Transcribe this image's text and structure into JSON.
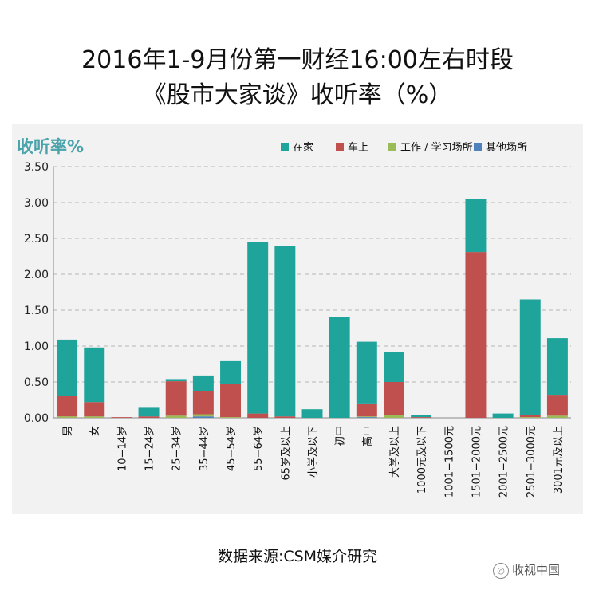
{
  "chart_data": {
    "type": "bar",
    "stacked": true,
    "title_line1": "2016年1-9月份第一财经16:00左右时段",
    "title_line2": "《股市大家谈》收听率（%）",
    "ylabel": "收听率%",
    "ylim": [
      0,
      3.5
    ],
    "yticks": [
      "0.00",
      "0.50",
      "1.00",
      "1.50",
      "2.00",
      "2.50",
      "3.00",
      "3.50"
    ],
    "grid": true,
    "legend_position": "top-right",
    "categories": [
      "男",
      "女",
      "10−14岁",
      "15−24岁",
      "25−34岁",
      "35−44岁",
      "45−54岁",
      "55−64岁",
      "65岁及以上",
      "小学及以下",
      "初中",
      "高中",
      "大学及以上",
      "1000元及以下",
      "1001−1500元",
      "1501−2000元",
      "2001−2500元",
      "2501−3000元",
      "3001元及以上"
    ],
    "series": [
      {
        "name": "其他场所",
        "color": "#4f81bd",
        "values": [
          0.0,
          0.0,
          0.0,
          0.0,
          0.0,
          0.02,
          0.0,
          0.0,
          0.0,
          0.0,
          0.0,
          0.01,
          0.0,
          0.0,
          0.0,
          0.0,
          0.0,
          0.0,
          0.0
        ]
      },
      {
        "name": "工作 / 学习场所",
        "color": "#9bbb59",
        "values": [
          0.02,
          0.02,
          0.0,
          0.0,
          0.03,
          0.03,
          0.01,
          0.0,
          0.0,
          0.0,
          0.0,
          0.01,
          0.04,
          0.0,
          0.0,
          0.0,
          0.0,
          0.01,
          0.03
        ]
      },
      {
        "name": "车上",
        "color": "#c0504d",
        "values": [
          0.28,
          0.2,
          0.01,
          0.02,
          0.48,
          0.32,
          0.46,
          0.06,
          0.02,
          0.0,
          0.0,
          0.17,
          0.46,
          0.01,
          0.0,
          2.31,
          0.0,
          0.03,
          0.28
        ]
      },
      {
        "name": "在家",
        "color": "#1fa49b",
        "values": [
          0.79,
          0.76,
          0.0,
          0.12,
          0.03,
          0.22,
          0.32,
          2.39,
          2.38,
          0.12,
          1.4,
          0.87,
          0.42,
          0.03,
          0.0,
          0.74,
          0.06,
          1.61,
          0.8
        ]
      }
    ],
    "legend_order": [
      "在家",
      "车上",
      "工作 / 学习场所",
      "其他场所"
    ]
  },
  "source": "数据来源:CSM媒介研究",
  "watermark": "收视中国"
}
